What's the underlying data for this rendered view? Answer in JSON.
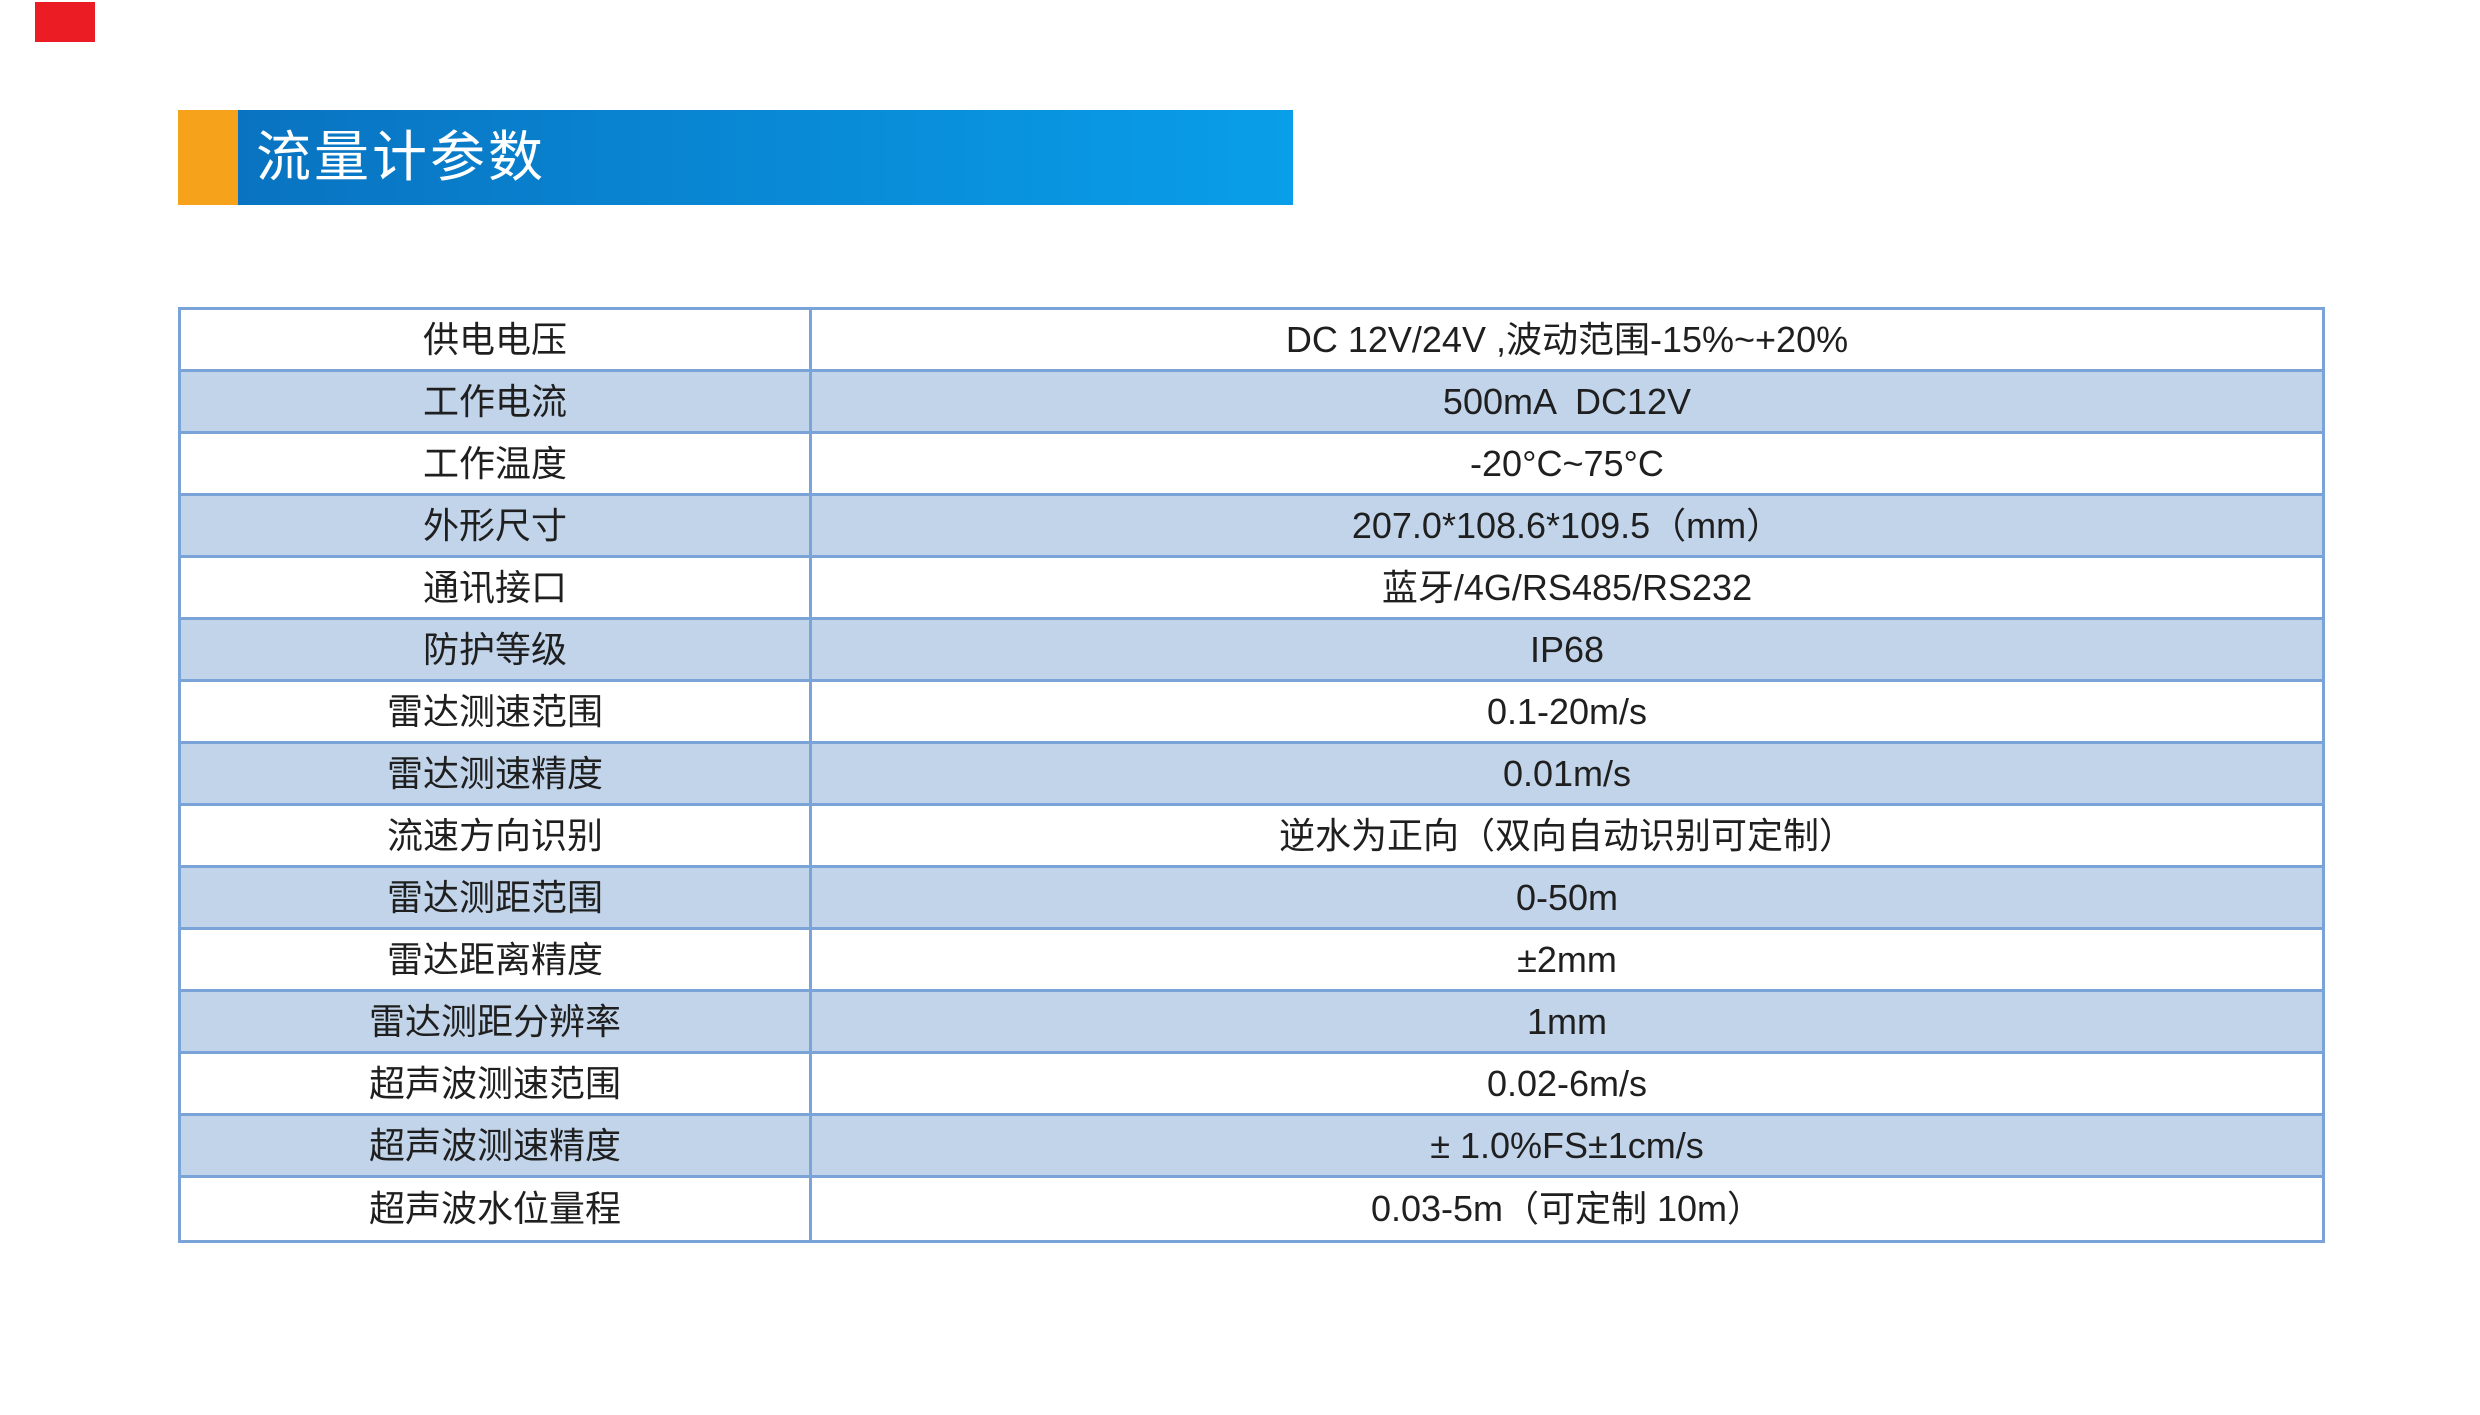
{
  "header": {
    "title": "流量计参数",
    "accent_color": "#f7a21b",
    "gradient_start": "#0973c1",
    "gradient_end": "#099ee9",
    "title_color": "#ffffff"
  },
  "corner_mark": {
    "color": "#ec1c24"
  },
  "table": {
    "border_color": "#7aa3d7",
    "band_color": "#c2d4ea",
    "text_color": "#1f1f1f",
    "rows": [
      {
        "label": "供电电压",
        "value": "DC 12V/24V ,波动范围-15%~+20%"
      },
      {
        "label": "工作电流",
        "value": "500mA  DC12V"
      },
      {
        "label": "工作温度",
        "value": "-20°C~75°C"
      },
      {
        "label": "外形尺寸",
        "value": "207.0*108.6*109.5（mm）"
      },
      {
        "label": "通讯接口",
        "value": "蓝牙/4G/RS485/RS232"
      },
      {
        "label": "防护等级",
        "value": "IP68"
      },
      {
        "label": "雷达测速范围",
        "value": "0.1-20m/s"
      },
      {
        "label": "雷达测速精度",
        "value": "0.01m/s"
      },
      {
        "label": "流速方向识别",
        "value": "逆水为正向（双向自动识别可定制）"
      },
      {
        "label": "雷达测距范围",
        "value": "0-50m"
      },
      {
        "label": "雷达距离精度",
        "value": "±2mm"
      },
      {
        "label": "雷达测距分辨率",
        "value": "1mm"
      },
      {
        "label": "超声波测速范围",
        "value": "0.02-6m/s"
      },
      {
        "label": "超声波测速精度",
        "value": "± 1.0%FS±1cm/s"
      },
      {
        "label": "超声波水位量程",
        "value": "0.03-5m（可定制 10m）"
      }
    ]
  }
}
